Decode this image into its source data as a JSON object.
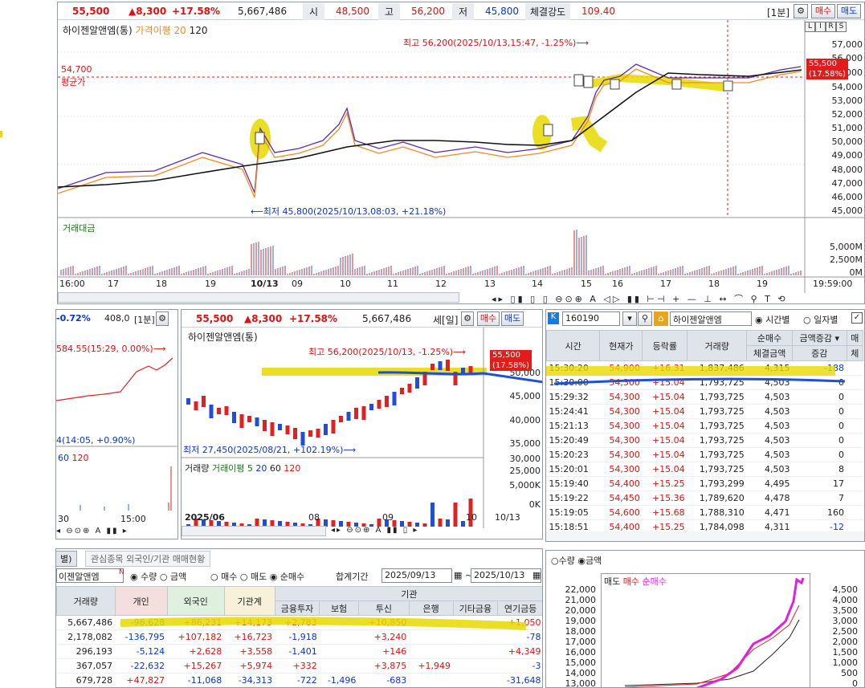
{
  "top": {
    "price": "55,500",
    "change": "▲8,300",
    "rate": "+17.58%",
    "volume": "5,667,486",
    "open_lbl": "시",
    "open": "48,500",
    "high_lbl": "고",
    "high": "56,200",
    "low_lbl": "저",
    "low": "45,800",
    "str_lbl": "체결강도",
    "str": "109.40",
    "period": "[1분]",
    "buy": "매수",
    "sell": "매도"
  },
  "chart1": {
    "title": "하이젠알앤엠(통)",
    "ma_lbl": "가격이평 20",
    "ma2": "120",
    "avg_price": "54,700",
    "avg_lbl": "평균가",
    "max_note": "최고 56,200(2025/10/13,15:47, -1.25%)⟶",
    "min_note": "⟵최저 45,800(2025/10/13,08:03, +21.18%)",
    "last": "55,500",
    "last_pct": "(17.58%)",
    "vol_title": "거래대금",
    "badges": [
      "L",
      "I",
      "R",
      "S"
    ],
    "yticks": [
      "57,000",
      "56,000",
      "55,000",
      "54,000",
      "53,000",
      "52,000",
      "51,000",
      "50,000",
      "49,000",
      "48,000",
      "47,000",
      "46,000",
      "45,000"
    ],
    "vol_ticks": [
      "5,000M",
      "2,500M",
      "0M"
    ],
    "xticks": [
      "16:00",
      "17",
      "18",
      "19",
      "10/13",
      "09",
      "10",
      "11",
      "12",
      "13",
      "14",
      "15",
      "16",
      "17",
      "18",
      "19",
      "19:59:00"
    ]
  },
  "toolbar1": [
    "⊖",
    "⊙",
    "⊕",
    "A",
    "▯",
    "▮",
    "▯▮",
    "⊢",
    "⊣",
    "+",
    "—",
    "⊥",
    "↔",
    "⌒",
    "⚲",
    "T",
    "⟲"
  ],
  "left_small": {
    "rate": "-0.72%",
    "val": "408,0",
    "period": "[1분]",
    "note": "584.55(15:29, 0.00%)⟶",
    "note2": "4(14:05, +0.90%)",
    "ma": "60",
    "ma2": "120",
    "xtick1": "30",
    "xtick2": "15:00"
  },
  "chart2": {
    "price": "55,500",
    "change": "▲8,300",
    "rate": "+17.58%",
    "volume": "5,667,486",
    "period": "세[일]",
    "buy": "매수",
    "sell": "매도",
    "title": "하이젠알앤엠(통)",
    "max_note": "최고 56,200(2025/10/13, -1.25%)⟶",
    "min_note": "최저 27,450(2025/08/21, +102.19%)⟶",
    "last": "55,500",
    "last_pct": "(17.58%)",
    "yticks": [
      "50,000",
      "45,000",
      "40,000",
      "35,000",
      "30,000",
      "25,000"
    ],
    "vol_lbl": "거래량",
    "vol_ma": "거래이평 5",
    "vma20": "20",
    "vma60": "60",
    "vma120": "120",
    "vol_ticks": [
      "5,000K",
      "0K"
    ],
    "xticks": [
      "2025/06",
      "08",
      "09",
      "10",
      "10/13"
    ]
  },
  "ticks_panel": {
    "code": "160190",
    "name": "하이젠알앤엠",
    "opt1": "시간별",
    "opt2": "일자별",
    "h_time": "시간",
    "h_cur": "현재가",
    "h_rate": "등락률",
    "h_vol": "거래량",
    "h_net": "순매수",
    "h_sel": "금액증감",
    "h_sel2": "매",
    "h_amt": "체결금액",
    "h_inc": "증감",
    "h_last": "체",
    "rows": [
      [
        "15:30:20",
        "54,900",
        "+16.31",
        "1,837,486",
        "4,315",
        "-188"
      ],
      [
        "15:30:00",
        "54,300",
        "+15.04",
        "1,793,725",
        "4,503",
        "0"
      ],
      [
        "15:29:32",
        "54,300",
        "+15.04",
        "1,793,725",
        "4,503",
        "0"
      ],
      [
        "15:24:41",
        "54,300",
        "+15.04",
        "1,793,725",
        "4,503",
        "0"
      ],
      [
        "15:21:13",
        "54,300",
        "+15.04",
        "1,793,725",
        "4,503",
        "0"
      ],
      [
        "15:20:49",
        "54,300",
        "+15.04",
        "1,793,725",
        "4,503",
        "0"
      ],
      [
        "15:20:23",
        "54,300",
        "+15.04",
        "1,793,725",
        "4,503",
        "0"
      ],
      [
        "15:20:01",
        "54,300",
        "+15.04",
        "1,793,725",
        "4,503",
        "8"
      ],
      [
        "15:19:40",
        "54,400",
        "+15.25",
        "1,793,299",
        "4,495",
        "17"
      ],
      [
        "15:19:22",
        "54,450",
        "+15.36",
        "1,789,620",
        "4,478",
        "7"
      ],
      [
        "15:19:05",
        "54,600",
        "+15.68",
        "1,788,310",
        "4,471",
        "160"
      ],
      [
        "15:18:51",
        "54,400",
        "+15.25",
        "1,784,098",
        "4,311",
        "-12"
      ]
    ]
  },
  "bottom": {
    "tab1": "별)",
    "tab2": "관심종목 외국인/기관 매매현황",
    "name": "이젠알앤엠",
    "n_lbl": "N",
    "r_qty": "수량",
    "r_amt": "금액",
    "r_buy": "매수",
    "r_sell": "매도",
    "r_net": "순매수",
    "period_lbl": "합계기간",
    "from": "2025/09/13",
    "tilde": "~",
    "to": "2025/10/13",
    "h": [
      "거래량",
      "개인",
      "외국인",
      "기관계",
      "금융투자",
      "보험",
      "투신",
      "은행",
      "기타금융",
      "연기금등"
    ],
    "inst": "기관",
    "rows": [
      [
        "5,667,486",
        "-96,628",
        "+86,231",
        "+14,173",
        "+2,783",
        "",
        "+10,850",
        "",
        "",
        "+1,050"
      ],
      [
        "2,178,082",
        "-136,795",
        "+107,182",
        "+16,723",
        "-1,918",
        "",
        "+3,240",
        "",
        "",
        "-78"
      ],
      [
        "296,193",
        "-5,124",
        "+2,628",
        "+3,558",
        "-1,401",
        "",
        "+146",
        "",
        "",
        "+4,349"
      ],
      [
        "367,057",
        "-22,632",
        "+15,267",
        "+5,974",
        "+332",
        "",
        "+3,875",
        "+1,949",
        "",
        "-3"
      ],
      [
        "679,728",
        "+47,827",
        "-11,068",
        "-34,313",
        "-722",
        "-1,496",
        "-683",
        "",
        "",
        "-31,648"
      ]
    ]
  },
  "mini": {
    "r_qty": "수량",
    "r_amt": "금액",
    "l_sell": "매도",
    "l_buy": "매수",
    "l_net": "순매수",
    "yl": [
      "22,000",
      "21,000",
      "20,000",
      "19,000",
      "18,000",
      "17,000",
      "16,000",
      "15,000",
      "14,000",
      "13,000"
    ],
    "yr": [
      "4,500",
      "4,000",
      "3,500",
      "3,000",
      "2,500",
      "2,000",
      "1,500",
      "1,000",
      "500",
      "0"
    ]
  }
}
